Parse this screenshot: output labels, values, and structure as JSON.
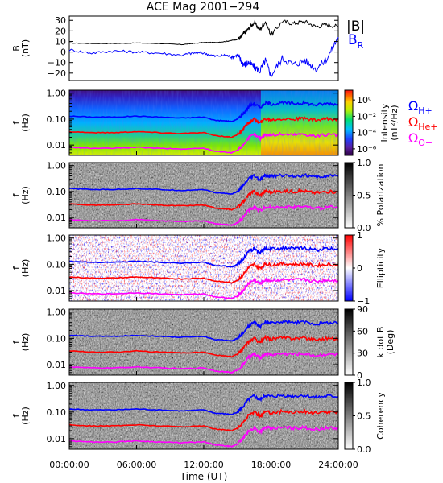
{
  "title": "ACE Mag 2001−294",
  "x_axis": {
    "label": "Time (UT)",
    "ticks": [
      "00:00:00",
      "06:00:00",
      "12:00:00",
      "18:00:00",
      "24:00:00"
    ],
    "tick_hours": [
      0,
      6,
      12,
      18,
      24
    ],
    "range_hours": [
      0,
      24
    ]
  },
  "freq_axis": {
    "label_line1": "f",
    "label_line2": "(Hz)",
    "ticks": [
      "1.00",
      "0.10",
      "0.01"
    ],
    "tick_values": [
      1.0,
      0.1,
      0.01
    ],
    "range_hz": [
      0.004,
      1.3
    ],
    "scale": "log"
  },
  "field_legend": {
    "total": "|B|",
    "radial": "B",
    "radial_sub": "R"
  },
  "gyro_legend": [
    {
      "sym": "Ω",
      "sub": "H+",
      "color": "#0000ff"
    },
    {
      "sym": "Ω",
      "sub": "He+",
      "color": "#ff0000"
    },
    {
      "sym": "Ω",
      "sub": "O+",
      "color": "#ff00ff"
    }
  ],
  "colors": {
    "total_field": "#000000",
    "radial_field": "#0000ff",
    "proton": "#0000ff",
    "helium": "#ff0000",
    "oxygen": "#ff00ff"
  },
  "panels": [
    {
      "id": "intensity",
      "colorbar": "rainbow",
      "cb_label": "Intensity",
      "cb_label2": "(nT²/Hz)",
      "cb_ticks": [
        "10⁰",
        "10⁻²",
        "10⁻⁴",
        "10⁻⁶"
      ],
      "cb_tick_vals": [
        0,
        -2,
        -4,
        -6
      ],
      "cb_range": [
        -6.8,
        1.2
      ]
    },
    {
      "id": "polarization",
      "colorbar": "gray",
      "cb_label": "% Polarization",
      "cb_label2": "",
      "cb_ticks": [
        "1.0",
        "0.5",
        "0.0"
      ],
      "cb_tick_vals": [
        1.0,
        0.5,
        0.0
      ],
      "cb_range": [
        0,
        1
      ]
    },
    {
      "id": "ellipticity",
      "colorbar": "bluered",
      "cb_label": "Ellipticity",
      "cb_label2": "",
      "cb_ticks": [
        "1",
        "0",
        "−1"
      ],
      "cb_tick_vals": [
        1,
        0,
        -1
      ],
      "cb_range": [
        -1,
        1
      ]
    },
    {
      "id": "kdotb",
      "colorbar": "gray",
      "cb_label": "k dot B",
      "cb_label2": "(Deg)",
      "cb_ticks": [
        "90",
        "60",
        "30",
        "0"
      ],
      "cb_tick_vals": [
        90,
        60,
        30,
        0
      ],
      "cb_range": [
        0,
        90
      ]
    },
    {
      "id": "coherency",
      "colorbar": "gray",
      "cb_label": "Coherency",
      "cb_label2": "",
      "cb_ticks": [
        "1.0",
        "0.5",
        "0.0"
      ],
      "cb_tick_vals": [
        1.0,
        0.5,
        0.0
      ],
      "cb_range": [
        0,
        1
      ]
    }
  ],
  "chart_data": [
    {
      "type": "line",
      "title": "ACE Mag 2001−294",
      "ylabel": "B (nT)",
      "ylim": [
        -27,
        34
      ],
      "yticks": [
        "30",
        "20",
        "10",
        "0",
        "−10",
        "−20"
      ],
      "ytick_values": [
        30,
        20,
        10,
        0,
        -10,
        -20
      ],
      "x": [
        0,
        2,
        4,
        6,
        8,
        10,
        11,
        12,
        13,
        14,
        14.5,
        15,
        15.3,
        15.6,
        16,
        16.5,
        17,
        17.5,
        18,
        19,
        20,
        21,
        22,
        23,
        24
      ],
      "series": [
        {
          "name": "|B|",
          "values": [
            8.5,
            8,
            8,
            8.5,
            8,
            7,
            8,
            9,
            9,
            10,
            11,
            12,
            14,
            18,
            22,
            28,
            21,
            29,
            16,
            29,
            27,
            29,
            24,
            26,
            24
          ]
        },
        {
          "name": "B_R",
          "values": [
            2,
            -1,
            1,
            0,
            -1,
            -3,
            -1,
            -1,
            -4,
            -3,
            -5,
            -3,
            -8,
            -12,
            -10,
            -14,
            -18,
            -8,
            -22,
            -6,
            -12,
            -8,
            -16,
            -6,
            14
          ]
        }
      ]
    },
    {
      "type": "line",
      "title": "",
      "ylabel": "f (Hz)",
      "yscale": "log",
      "note": "The same three ion gyrofrequency curves are overlaid on all five spectrogram panels.",
      "x": [
        0,
        2,
        4,
        6,
        8,
        10,
        12,
        13,
        14,
        14.5,
        15,
        15.5,
        16,
        16.5,
        17,
        17.5,
        18,
        19,
        20,
        21,
        22,
        23,
        24
      ],
      "series": [
        {
          "name": "ΩH+",
          "values": [
            0.13,
            0.12,
            0.12,
            0.13,
            0.12,
            0.11,
            0.12,
            0.09,
            0.085,
            0.08,
            0.1,
            0.16,
            0.3,
            0.4,
            0.28,
            0.42,
            0.38,
            0.42,
            0.4,
            0.42,
            0.35,
            0.4,
            0.38
          ]
        },
        {
          "name": "ΩHe+",
          "values": [
            0.033,
            0.03,
            0.03,
            0.033,
            0.03,
            0.028,
            0.03,
            0.023,
            0.021,
            0.02,
            0.025,
            0.04,
            0.075,
            0.1,
            0.07,
            0.105,
            0.095,
            0.105,
            0.1,
            0.105,
            0.088,
            0.1,
            0.095
          ]
        },
        {
          "name": "ΩO+",
          "values": [
            0.0082,
            0.0075,
            0.0075,
            0.0082,
            0.0075,
            0.007,
            0.0075,
            0.0058,
            0.0053,
            0.005,
            0.0063,
            0.01,
            0.019,
            0.025,
            0.018,
            0.026,
            0.024,
            0.026,
            0.025,
            0.026,
            0.022,
            0.025,
            0.024
          ]
        }
      ]
    }
  ]
}
